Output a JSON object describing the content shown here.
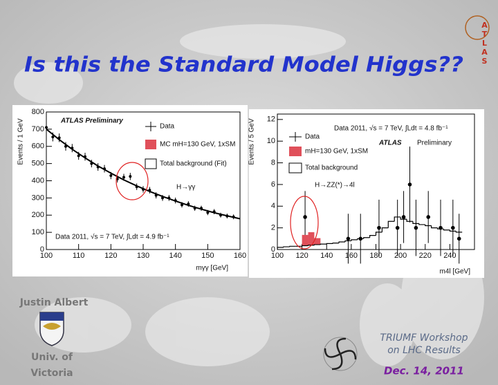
{
  "title": "Is this the Standard Model Higgs??",
  "logo_text": "ATLAS",
  "author": "Justin Albert",
  "affiliation": [
    "Univ. of",
    "Victoria"
  ],
  "event": [
    "TRIUMF Workshop",
    "on LHC Results"
  ],
  "date": "Dec. 14, 2011",
  "chart_data": [
    {
      "type": "scatter",
      "x_label": "mγγ [GeV]",
      "y_label": "Events / 1 GeV",
      "annotations": [
        "ATLAS Preliminary",
        "H→γγ",
        "Data 2011, √s = 7 TeV, ∫Ldt = 4.9 fb⁻¹"
      ],
      "xlim": [
        100,
        160
      ],
      "xticks": [
        100,
        110,
        120,
        130,
        140,
        150,
        160
      ],
      "ylim": [
        0,
        800
      ],
      "yticks": [
        0,
        100,
        200,
        300,
        400,
        500,
        600,
        700,
        800
      ],
      "series": [
        {
          "name": "Data",
          "type": "errorbar",
          "color": "#000000",
          "x": [
            100,
            102,
            104,
            106,
            108,
            110,
            112,
            114,
            116,
            118,
            120,
            122,
            124,
            126,
            128,
            130,
            132,
            134,
            136,
            138,
            140,
            142,
            144,
            146,
            148,
            150,
            152,
            154,
            156,
            158
          ],
          "values": [
            710,
            655,
            650,
            600,
            590,
            545,
            540,
            500,
            480,
            470,
            430,
            410,
            420,
            425,
            365,
            350,
            345,
            315,
            300,
            300,
            285,
            260,
            265,
            240,
            240,
            215,
            220,
            200,
            195,
            190
          ],
          "errors": [
            27,
            26,
            25,
            25,
            24,
            23,
            23,
            22,
            22,
            22,
            21,
            20,
            20,
            21,
            19,
            19,
            19,
            18,
            17,
            17,
            17,
            16,
            16,
            15,
            15,
            15,
            15,
            14,
            14,
            14
          ]
        },
        {
          "name": "MC mH=130 GeV, 1xSM",
          "type": "bar",
          "color": "#e0505a",
          "x": [],
          "values": []
        },
        {
          "name": "Total background (Fit)",
          "type": "line",
          "color": "#000000",
          "x": [
            100,
            104,
            108,
            112,
            116,
            120,
            124,
            128,
            132,
            136,
            140,
            144,
            148,
            152,
            156,
            160
          ],
          "values": [
            700,
            639,
            583,
            533,
            486,
            444,
            405,
            370,
            338,
            309,
            282,
            257,
            235,
            214,
            196,
            179
          ]
        }
      ]
    },
    {
      "type": "histogram",
      "x_label": "m4l [GeV]",
      "y_label": "Events / 5 GeV",
      "annotations": [
        "Data 2011, √s = 7 TeV, ∫Ldt = 4.8 fb⁻¹",
        "ATLAS",
        "Preliminary",
        "H→ZZ(*)→4l"
      ],
      "xlim": [
        100,
        260
      ],
      "xticks": [
        100,
        120,
        140,
        160,
        180,
        200,
        220,
        240
      ],
      "ylim": [
        0,
        12.5
      ],
      "yticks": [
        0,
        2,
        4,
        6,
        8,
        10,
        12
      ],
      "series": [
        {
          "name": "Data",
          "type": "errorbar",
          "color": "#000000",
          "x": [
            122.5,
            157.5,
            167.5,
            182.5,
            197.5,
            202.5,
            207.5,
            212.5,
            222.5,
            232.5,
            242.5,
            247.5
          ],
          "values": [
            3,
            1,
            1,
            2,
            2,
            3,
            6,
            2,
            3,
            2,
            2,
            1
          ],
          "errors": [
            2.4,
            2.3,
            2.3,
            2.6,
            2.6,
            2.4,
            3.5,
            2.6,
            2.4,
            2.6,
            2.6,
            2.3
          ]
        },
        {
          "name": "mH=130 GeV, 1xSM",
          "type": "bar",
          "color": "#e0505a",
          "stacked": true,
          "bins": [
            120,
            125,
            130,
            135
          ],
          "values": [
            1.0,
            1.2,
            0.6
          ]
        },
        {
          "name": "Total background",
          "type": "step",
          "color": "#000000",
          "bins": [
            100,
            105,
            110,
            115,
            120,
            125,
            130,
            135,
            140,
            145,
            150,
            155,
            160,
            165,
            170,
            175,
            180,
            185,
            190,
            195,
            200,
            205,
            210,
            215,
            220,
            225,
            230,
            235,
            240,
            245,
            250
          ],
          "values": [
            0.2,
            0.25,
            0.3,
            0.3,
            0.35,
            0.4,
            0.45,
            0.5,
            0.55,
            0.6,
            0.7,
            0.8,
            0.9,
            1.0,
            1.1,
            1.3,
            1.6,
            2.0,
            2.6,
            3.0,
            2.8,
            2.6,
            2.4,
            2.3,
            2.2,
            2.0,
            1.9,
            1.8,
            1.7,
            1.6
          ]
        }
      ]
    }
  ]
}
